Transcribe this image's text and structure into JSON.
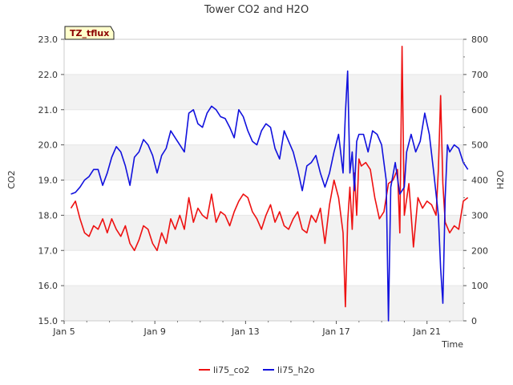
{
  "chart_data": {
    "type": "line",
    "title": "Tower CO2 and H2O",
    "badge": "TZ_tflux",
    "xlabel": "Time",
    "ylabel_left": "CO2",
    "ylabel_right": "H2O",
    "xlim_days": [
      5,
      22.6
    ],
    "x_ticks": [
      {
        "day": 5,
        "label": "Jan 5"
      },
      {
        "day": 9,
        "label": "Jan 9"
      },
      {
        "day": 13,
        "label": "Jan 13"
      },
      {
        "day": 17,
        "label": "Jan 17"
      },
      {
        "day": 21,
        "label": "Jan 21"
      }
    ],
    "ylim_left": [
      15,
      23
    ],
    "y_ticks_left": [
      "15.0",
      "16.0",
      "17.0",
      "18.0",
      "19.0",
      "20.0",
      "21.0",
      "22.0",
      "23.0"
    ],
    "ylim_right": [
      0,
      800
    ],
    "y_ticks_right": [
      "0",
      "100",
      "200",
      "300",
      "400",
      "500",
      "600",
      "700",
      "800"
    ],
    "grid": "horizontal alternating bands",
    "legend_position": "bottom-center",
    "series": [
      {
        "name": "li75_co2",
        "axis": "left",
        "color": "#ee1111",
        "points": [
          [
            5.3,
            18.2
          ],
          [
            5.5,
            18.4
          ],
          [
            5.7,
            17.9
          ],
          [
            5.9,
            17.5
          ],
          [
            6.1,
            17.4
          ],
          [
            6.3,
            17.7
          ],
          [
            6.5,
            17.6
          ],
          [
            6.7,
            17.9
          ],
          [
            6.9,
            17.5
          ],
          [
            7.1,
            17.9
          ],
          [
            7.3,
            17.6
          ],
          [
            7.5,
            17.4
          ],
          [
            7.7,
            17.7
          ],
          [
            7.9,
            17.2
          ],
          [
            8.1,
            17.0
          ],
          [
            8.3,
            17.3
          ],
          [
            8.5,
            17.7
          ],
          [
            8.7,
            17.6
          ],
          [
            8.9,
            17.2
          ],
          [
            9.1,
            17.0
          ],
          [
            9.3,
            17.5
          ],
          [
            9.5,
            17.2
          ],
          [
            9.7,
            17.9
          ],
          [
            9.9,
            17.6
          ],
          [
            10.1,
            18.0
          ],
          [
            10.3,
            17.6
          ],
          [
            10.5,
            18.5
          ],
          [
            10.7,
            17.8
          ],
          [
            10.9,
            18.2
          ],
          [
            11.1,
            18.0
          ],
          [
            11.3,
            17.9
          ],
          [
            11.5,
            18.6
          ],
          [
            11.7,
            17.8
          ],
          [
            11.9,
            18.1
          ],
          [
            12.1,
            18.0
          ],
          [
            12.3,
            17.7
          ],
          [
            12.5,
            18.1
          ],
          [
            12.7,
            18.4
          ],
          [
            12.9,
            18.6
          ],
          [
            13.1,
            18.5
          ],
          [
            13.3,
            18.1
          ],
          [
            13.5,
            17.9
          ],
          [
            13.7,
            17.6
          ],
          [
            13.9,
            18.0
          ],
          [
            14.1,
            18.3
          ],
          [
            14.3,
            17.8
          ],
          [
            14.5,
            18.1
          ],
          [
            14.7,
            17.7
          ],
          [
            14.9,
            17.6
          ],
          [
            15.1,
            17.9
          ],
          [
            15.3,
            18.1
          ],
          [
            15.5,
            17.6
          ],
          [
            15.7,
            17.5
          ],
          [
            15.9,
            18.0
          ],
          [
            16.1,
            17.8
          ],
          [
            16.3,
            18.2
          ],
          [
            16.5,
            17.2
          ],
          [
            16.7,
            18.3
          ],
          [
            16.9,
            19.0
          ],
          [
            17.1,
            18.5
          ],
          [
            17.3,
            17.5
          ],
          [
            17.4,
            15.4
          ],
          [
            17.5,
            17.8
          ],
          [
            17.6,
            18.8
          ],
          [
            17.7,
            17.6
          ],
          [
            17.8,
            19.2
          ],
          [
            17.9,
            18.0
          ],
          [
            18.0,
            19.6
          ],
          [
            18.1,
            19.4
          ],
          [
            18.3,
            19.5
          ],
          [
            18.5,
            19.3
          ],
          [
            18.7,
            18.5
          ],
          [
            18.9,
            17.9
          ],
          [
            19.1,
            18.1
          ],
          [
            19.3,
            18.9
          ],
          [
            19.5,
            19.0
          ],
          [
            19.7,
            19.3
          ],
          [
            19.8,
            17.5
          ],
          [
            19.9,
            22.8
          ],
          [
            20.0,
            18.0
          ],
          [
            20.2,
            18.9
          ],
          [
            20.4,
            17.1
          ],
          [
            20.6,
            18.5
          ],
          [
            20.8,
            18.2
          ],
          [
            21.0,
            18.4
          ],
          [
            21.2,
            18.3
          ],
          [
            21.4,
            18.0
          ],
          [
            21.5,
            19.3
          ],
          [
            21.6,
            21.4
          ],
          [
            21.7,
            18.9
          ],
          [
            21.8,
            17.8
          ],
          [
            22.0,
            17.5
          ],
          [
            22.2,
            17.7
          ],
          [
            22.4,
            17.6
          ],
          [
            22.6,
            18.4
          ],
          [
            22.8,
            18.5
          ]
        ]
      },
      {
        "name": "li75_h2o",
        "axis": "right",
        "color": "#1111dd",
        "points": [
          [
            5.3,
            360
          ],
          [
            5.5,
            365
          ],
          [
            5.7,
            380
          ],
          [
            5.9,
            400
          ],
          [
            6.1,
            410
          ],
          [
            6.3,
            430
          ],
          [
            6.5,
            430
          ],
          [
            6.7,
            385
          ],
          [
            6.9,
            420
          ],
          [
            7.1,
            465
          ],
          [
            7.3,
            495
          ],
          [
            7.5,
            480
          ],
          [
            7.7,
            440
          ],
          [
            7.9,
            385
          ],
          [
            8.1,
            465
          ],
          [
            8.3,
            480
          ],
          [
            8.5,
            515
          ],
          [
            8.7,
            500
          ],
          [
            8.9,
            470
          ],
          [
            9.1,
            420
          ],
          [
            9.3,
            470
          ],
          [
            9.5,
            490
          ],
          [
            9.7,
            540
          ],
          [
            9.9,
            520
          ],
          [
            10.1,
            500
          ],
          [
            10.3,
            480
          ],
          [
            10.5,
            590
          ],
          [
            10.7,
            600
          ],
          [
            10.9,
            560
          ],
          [
            11.1,
            550
          ],
          [
            11.3,
            590
          ],
          [
            11.5,
            610
          ],
          [
            11.7,
            600
          ],
          [
            11.9,
            580
          ],
          [
            12.1,
            575
          ],
          [
            12.3,
            550
          ],
          [
            12.5,
            520
          ],
          [
            12.7,
            600
          ],
          [
            12.9,
            580
          ],
          [
            13.1,
            540
          ],
          [
            13.3,
            510
          ],
          [
            13.5,
            500
          ],
          [
            13.7,
            540
          ],
          [
            13.9,
            560
          ],
          [
            14.1,
            550
          ],
          [
            14.3,
            490
          ],
          [
            14.5,
            460
          ],
          [
            14.7,
            540
          ],
          [
            14.9,
            510
          ],
          [
            15.1,
            480
          ],
          [
            15.3,
            430
          ],
          [
            15.5,
            370
          ],
          [
            15.7,
            440
          ],
          [
            15.9,
            450
          ],
          [
            16.1,
            470
          ],
          [
            16.3,
            420
          ],
          [
            16.5,
            380
          ],
          [
            16.7,
            420
          ],
          [
            16.9,
            480
          ],
          [
            17.1,
            530
          ],
          [
            17.3,
            420
          ],
          [
            17.4,
            590
          ],
          [
            17.5,
            710
          ],
          [
            17.6,
            420
          ],
          [
            17.7,
            480
          ],
          [
            17.8,
            370
          ],
          [
            17.9,
            510
          ],
          [
            18.0,
            530
          ],
          [
            18.2,
            530
          ],
          [
            18.4,
            480
          ],
          [
            18.6,
            540
          ],
          [
            18.8,
            530
          ],
          [
            19.0,
            500
          ],
          [
            19.2,
            400
          ],
          [
            19.3,
            0
          ],
          [
            19.4,
            380
          ],
          [
            19.6,
            450
          ],
          [
            19.8,
            360
          ],
          [
            20.0,
            380
          ],
          [
            20.1,
            480
          ],
          [
            20.3,
            530
          ],
          [
            20.5,
            480
          ],
          [
            20.7,
            510
          ],
          [
            20.9,
            590
          ],
          [
            21.1,
            530
          ],
          [
            21.3,
            420
          ],
          [
            21.5,
            300
          ],
          [
            21.6,
            150
          ],
          [
            21.7,
            50
          ],
          [
            21.8,
            350
          ],
          [
            21.9,
            500
          ],
          [
            22.0,
            480
          ],
          [
            22.2,
            500
          ],
          [
            22.4,
            490
          ],
          [
            22.6,
            450
          ],
          [
            22.8,
            430
          ]
        ]
      }
    ]
  }
}
